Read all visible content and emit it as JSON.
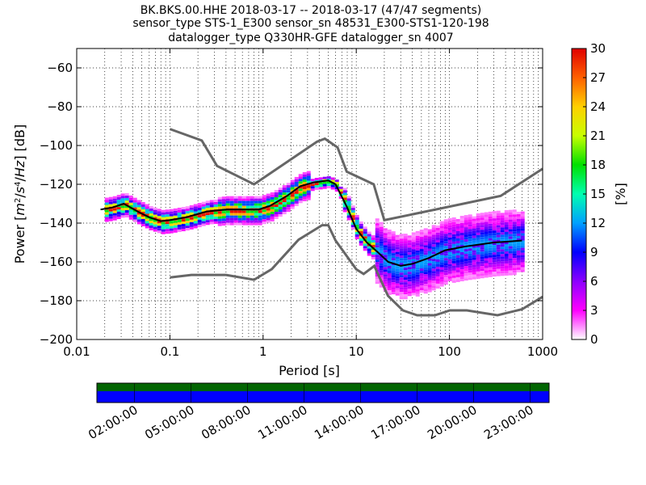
{
  "chart_data": {
    "type": "heatmap",
    "title_lines": [
      "BK.BKS.00.HHE   2018-03-17 -- 2018-03-17  (47/47 segments)",
      "sensor_type STS-1_E300 sensor_sn 48531_E300-STS1-120-198",
      "datalogger_type Q330HR-GFE datalogger_sn 4007"
    ],
    "xlabel": "Period [s]",
    "ylabel_parts": [
      "Power [",
      "m",
      "2",
      "/",
      "s",
      "4",
      "/",
      "Hz",
      "] [dB]"
    ],
    "x_scale": "log",
    "xlim": [
      0.01,
      1000
    ],
    "ylim": [
      -200,
      -50
    ],
    "x_ticks": [
      {
        "v": 0.01,
        "label": "0.01"
      },
      {
        "v": 0.1,
        "label": "0.1"
      },
      {
        "v": 1,
        "label": "1"
      },
      {
        "v": 10,
        "label": "10"
      },
      {
        "v": 100,
        "label": "100"
      },
      {
        "v": 1000,
        "label": "1000"
      }
    ],
    "y_ticks": [
      {
        "v": -60,
        "label": "−60"
      },
      {
        "v": -80,
        "label": "−80"
      },
      {
        "v": -100,
        "label": "−100"
      },
      {
        "v": -120,
        "label": "−120"
      },
      {
        "v": -140,
        "label": "−140"
      },
      {
        "v": -160,
        "label": "−160"
      },
      {
        "v": -180,
        "label": "−180"
      },
      {
        "v": -200,
        "label": "−200"
      }
    ],
    "grid": true,
    "colorbar": {
      "label": "[%]",
      "min": 0,
      "max": 30,
      "ticks": [
        {
          "v": 0,
          "label": "0"
        },
        {
          "v": 3,
          "label": "3"
        },
        {
          "v": 6,
          "label": "6"
        },
        {
          "v": 9,
          "label": "9"
        },
        {
          "v": 12,
          "label": "12"
        },
        {
          "v": 15,
          "label": "15"
        },
        {
          "v": 18,
          "label": "18"
        },
        {
          "v": 21,
          "label": "21"
        },
        {
          "v": 24,
          "label": "24"
        },
        {
          "v": 27,
          "label": "27"
        },
        {
          "v": 30,
          "label": "30"
        }
      ],
      "colors": [
        "#ffffff",
        "#ff00ff",
        "#8c00ff",
        "#0000ff",
        "#00a0ff",
        "#00ffb0",
        "#00e000",
        "#c8ff00",
        "#ffd000",
        "#ff6000",
        "#e00000"
      ]
    },
    "series": [
      {
        "role": "NHNM",
        "color": "#666666",
        "points": [
          [
            0.1,
            -91.5
          ],
          [
            0.22,
            -97.4
          ],
          [
            0.32,
            -110.5
          ],
          [
            0.8,
            -120
          ],
          [
            3.8,
            -98
          ],
          [
            4.6,
            -96.5
          ],
          [
            6.3,
            -101
          ],
          [
            7.9,
            -113.5
          ],
          [
            15.4,
            -120
          ],
          [
            20,
            -138.5
          ],
          [
            354,
            -126
          ],
          [
            1000,
            -112
          ]
        ]
      },
      {
        "role": "NLNM",
        "color": "#666666",
        "points": [
          [
            0.1,
            -168
          ],
          [
            0.17,
            -166.7
          ],
          [
            0.4,
            -166.7
          ],
          [
            0.8,
            -169.2
          ],
          [
            1.24,
            -163.7
          ],
          [
            2.4,
            -148.6
          ],
          [
            4.3,
            -141.1
          ],
          [
            5,
            -141.1
          ],
          [
            6,
            -149
          ],
          [
            10,
            -163.8
          ],
          [
            12,
            -166.2
          ],
          [
            15.6,
            -162.1
          ],
          [
            21.9,
            -177.5
          ],
          [
            31.6,
            -185
          ],
          [
            45,
            -187.5
          ],
          [
            70,
            -187.5
          ],
          [
            101,
            -185
          ],
          [
            154,
            -185
          ],
          [
            328,
            -187.5
          ],
          [
            600,
            -184.4
          ],
          [
            1000,
            -178
          ]
        ]
      },
      {
        "role": "mean",
        "color": "#000000",
        "points": [
          [
            0.018,
            -133
          ],
          [
            0.024,
            -132
          ],
          [
            0.032,
            -130
          ],
          [
            0.045,
            -134
          ],
          [
            0.06,
            -137
          ],
          [
            0.08,
            -139
          ],
          [
            0.1,
            -138.5
          ],
          [
            0.15,
            -137
          ],
          [
            0.25,
            -134
          ],
          [
            0.4,
            -133
          ],
          [
            0.6,
            -133
          ],
          [
            0.9,
            -133
          ],
          [
            1.2,
            -131
          ],
          [
            1.8,
            -126
          ],
          [
            2.5,
            -121
          ],
          [
            3.5,
            -119
          ],
          [
            5,
            -118
          ],
          [
            6,
            -120
          ],
          [
            8,
            -132
          ],
          [
            10,
            -143
          ],
          [
            13,
            -150
          ],
          [
            17,
            -155
          ],
          [
            22,
            -160
          ],
          [
            30,
            -162
          ],
          [
            40,
            -161
          ],
          [
            60,
            -158
          ],
          [
            90,
            -154
          ],
          [
            150,
            -152
          ],
          [
            300,
            -150
          ],
          [
            600,
            -149
          ]
        ]
      }
    ]
  },
  "timeline": {
    "tick_labels": [
      "02:00:00",
      "05:00:00",
      "08:00:00",
      "11:00:00",
      "14:00:00",
      "17:00:00",
      "20:00:00",
      "23:00:00"
    ],
    "tick_hours": [
      2,
      5,
      8,
      11,
      14,
      17,
      20,
      23
    ],
    "span_hours": [
      0,
      24
    ],
    "top_color": "#006400",
    "bottom_color": "#0000ff",
    "segments": 47
  }
}
